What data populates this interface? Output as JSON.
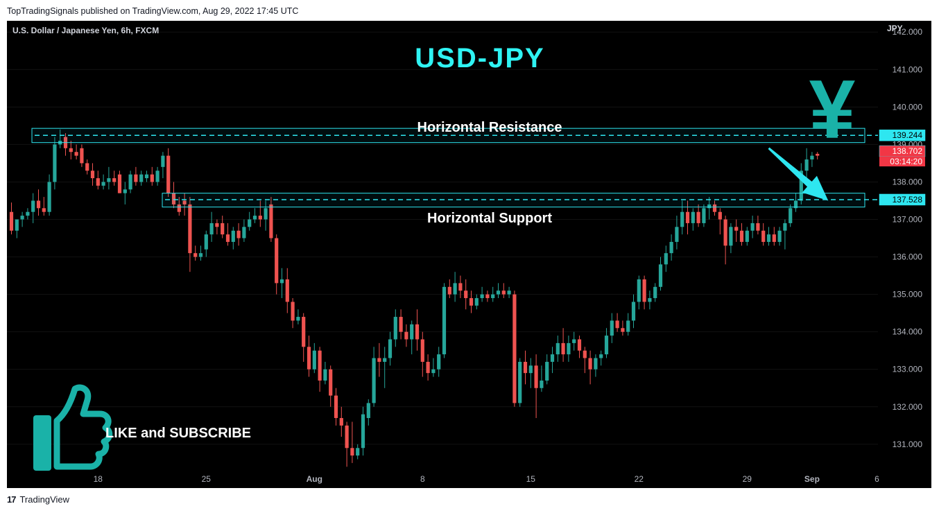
{
  "header": {
    "published_text": "TopTradingSignals published on TradingView.com, Aug 29, 2022 17:45 UTC"
  },
  "footer": {
    "logo_glyph": "17",
    "brand": "TradingView"
  },
  "chart_data": {
    "type": "candlestick",
    "symbol_line": "U.S. Dollar / Japanese Yen, 6h, FXCM",
    "title": "USD-JPY",
    "currency_label": "JPY",
    "currency_glyph": "¥",
    "y_ticks": [
      "142.000",
      "141.000",
      "140.000",
      "139.000",
      "138.000",
      "137.000",
      "136.000",
      "135.000",
      "134.000",
      "133.000",
      "132.000",
      "131.000"
    ],
    "y_tick_values": [
      142,
      141,
      140,
      139,
      138,
      137,
      136,
      135,
      134,
      133,
      132,
      131
    ],
    "ylim": [
      130.35,
      142.3
    ],
    "x_ticks": [
      "18",
      "25",
      "Aug",
      "8",
      "15",
      "22",
      "29",
      "Sep",
      "6"
    ],
    "x_tick_index": [
      16,
      36,
      56,
      76,
      96,
      116,
      136,
      148,
      160
    ],
    "resistance": {
      "label": "Horizontal Resistance",
      "value": 139.244,
      "value_text": "139.244",
      "zone": [
        139.05,
        139.43
      ]
    },
    "support": {
      "label": "Horizontal Support",
      "value": 137.528,
      "value_text": "137.528",
      "zone": [
        137.33,
        137.7
      ]
    },
    "last_price": {
      "value": 138.702,
      "value_text": "138.702",
      "countdown": "03:14:20"
    },
    "projection_arrow": {
      "from_index": 140,
      "from_value": 138.9,
      "to_index": 151,
      "to_value": 137.5
    },
    "promo_text": "LIKE and SUBSCRIBE",
    "candles": [
      [
        137.2,
        137.45,
        136.6,
        136.7
      ],
      [
        136.7,
        136.9,
        136.5,
        137.0
      ],
      [
        137.0,
        137.2,
        136.8,
        137.1
      ],
      [
        137.1,
        137.3,
        137.0,
        137.2
      ],
      [
        137.2,
        137.7,
        136.9,
        137.5
      ],
      [
        137.5,
        137.8,
        137.1,
        137.3
      ],
      [
        137.3,
        137.6,
        137.1,
        137.2
      ],
      [
        137.2,
        138.2,
        137.1,
        138.0
      ],
      [
        138.0,
        139.2,
        137.8,
        139.0
      ],
      [
        139.0,
        139.4,
        138.9,
        139.1
      ],
      [
        139.2,
        139.3,
        138.7,
        138.9
      ],
      [
        138.9,
        139.1,
        138.6,
        138.8
      ],
      [
        138.8,
        139.0,
        138.6,
        138.7
      ],
      [
        138.9,
        139.0,
        138.4,
        138.5
      ],
      [
        138.5,
        138.6,
        138.2,
        138.3
      ],
      [
        138.3,
        138.5,
        137.9,
        138.1
      ],
      [
        138.1,
        138.3,
        137.8,
        137.9
      ],
      [
        137.9,
        138.2,
        137.8,
        138.0
      ],
      [
        138.0,
        138.4,
        137.8,
        138.1
      ],
      [
        138.1,
        138.3,
        137.9,
        138.0
      ],
      [
        138.2,
        138.3,
        137.7,
        137.7
      ],
      [
        137.7,
        138.0,
        137.4,
        137.8
      ],
      [
        137.8,
        138.3,
        137.7,
        138.2
      ],
      [
        138.2,
        138.4,
        137.9,
        138.0
      ],
      [
        138.0,
        138.3,
        137.9,
        138.2
      ],
      [
        138.1,
        138.3,
        138.0,
        138.2
      ],
      [
        138.2,
        138.4,
        137.9,
        138.0
      ],
      [
        138.0,
        138.4,
        137.9,
        138.3
      ],
      [
        138.4,
        138.8,
        138.1,
        138.7
      ],
      [
        138.7,
        138.9,
        137.6,
        137.7
      ],
      [
        137.7,
        138.0,
        137.3,
        137.4
      ],
      [
        137.4,
        137.6,
        137.1,
        137.2
      ],
      [
        137.5,
        137.7,
        137.1,
        137.4
      ],
      [
        137.4,
        137.6,
        135.6,
        136.1
      ],
      [
        136.1,
        136.3,
        135.9,
        136.0
      ],
      [
        136.0,
        136.3,
        135.9,
        136.1
      ],
      [
        136.2,
        136.7,
        136.0,
        136.6
      ],
      [
        136.6,
        137.2,
        136.4,
        136.9
      ],
      [
        136.9,
        137.0,
        136.6,
        136.8
      ],
      [
        136.9,
        137.1,
        136.5,
        136.6
      ],
      [
        136.6,
        136.9,
        136.3,
        136.4
      ],
      [
        136.4,
        136.8,
        136.2,
        136.7
      ],
      [
        136.7,
        136.9,
        136.3,
        136.5
      ],
      [
        136.5,
        137.0,
        136.4,
        136.8
      ],
      [
        136.8,
        137.2,
        136.7,
        137.0
      ],
      [
        137.0,
        137.3,
        136.9,
        137.1
      ],
      [
        137.1,
        137.5,
        136.8,
        137.0
      ],
      [
        137.0,
        137.5,
        136.7,
        137.3
      ],
      [
        137.4,
        137.6,
        136.4,
        136.5
      ],
      [
        136.5,
        136.6,
        135.0,
        135.3
      ],
      [
        135.3,
        135.7,
        134.9,
        135.4
      ],
      [
        135.4,
        135.7,
        134.5,
        134.8
      ],
      [
        134.8,
        134.9,
        134.1,
        134.3
      ],
      [
        134.3,
        134.6,
        134.2,
        134.4
      ],
      [
        134.4,
        134.5,
        133.2,
        133.6
      ],
      [
        133.6,
        133.9,
        132.8,
        133.0
      ],
      [
        133.0,
        133.7,
        132.9,
        133.5
      ],
      [
        133.5,
        133.6,
        132.4,
        132.7
      ],
      [
        132.7,
        133.2,
        132.6,
        133.0
      ],
      [
        133.0,
        133.1,
        132.0,
        132.3
      ],
      [
        132.3,
        132.5,
        131.5,
        131.7
      ],
      [
        131.7,
        132.0,
        131.2,
        131.5
      ],
      [
        131.5,
        131.6,
        130.4,
        130.9
      ],
      [
        130.9,
        131.6,
        130.5,
        130.7
      ],
      [
        130.7,
        131.0,
        130.6,
        130.9
      ],
      [
        130.9,
        132.0,
        130.7,
        131.8
      ],
      [
        131.7,
        132.2,
        131.5,
        132.1
      ],
      [
        132.1,
        133.6,
        132.0,
        133.3
      ],
      [
        133.3,
        133.7,
        132.8,
        133.2
      ],
      [
        133.2,
        133.6,
        132.5,
        133.3
      ],
      [
        133.3,
        134.0,
        133.1,
        133.8
      ],
      [
        133.8,
        134.6,
        133.6,
        134.4
      ],
      [
        134.4,
        134.6,
        133.8,
        134.0
      ],
      [
        134.0,
        134.2,
        133.6,
        133.8
      ],
      [
        133.8,
        134.3,
        133.4,
        134.2
      ],
      [
        134.2,
        134.6,
        133.5,
        133.8
      ],
      [
        133.8,
        134.0,
        132.8,
        133.2
      ],
      [
        133.2,
        133.4,
        132.7,
        132.9
      ],
      [
        132.9,
        133.3,
        132.8,
        133.0
      ],
      [
        133.0,
        133.6,
        132.8,
        133.4
      ],
      [
        133.4,
        135.3,
        133.3,
        135.2
      ],
      [
        135.2,
        135.4,
        134.9,
        135.0
      ],
      [
        135.0,
        135.6,
        134.8,
        135.3
      ],
      [
        135.3,
        135.5,
        134.9,
        135.1
      ],
      [
        135.1,
        135.4,
        134.6,
        134.9
      ],
      [
        134.9,
        135.1,
        134.5,
        134.7
      ],
      [
        134.7,
        135.0,
        134.6,
        134.9
      ],
      [
        134.9,
        135.2,
        134.8,
        135.0
      ],
      [
        135.0,
        135.1,
        134.8,
        134.9
      ],
      [
        134.9,
        135.2,
        134.8,
        135.0
      ],
      [
        135.0,
        135.3,
        134.9,
        135.1
      ],
      [
        135.1,
        135.3,
        134.9,
        135.0
      ],
      [
        135.0,
        135.2,
        134.9,
        135.1
      ],
      [
        135.0,
        135.1,
        132.0,
        132.1
      ],
      [
        132.1,
        133.3,
        132.0,
        133.2
      ],
      [
        133.2,
        133.5,
        132.6,
        132.9
      ],
      [
        132.9,
        133.3,
        132.5,
        133.1
      ],
      [
        133.1,
        133.4,
        131.7,
        132.5
      ],
      [
        132.5,
        133.1,
        132.4,
        132.7
      ],
      [
        132.7,
        133.4,
        132.6,
        133.2
      ],
      [
        133.2,
        133.6,
        132.9,
        133.4
      ],
      [
        133.4,
        133.9,
        133.2,
        133.7
      ],
      [
        133.7,
        134.1,
        133.2,
        133.4
      ],
      [
        133.4,
        133.9,
        133.2,
        133.7
      ],
      [
        133.7,
        134.0,
        133.5,
        133.8
      ],
      [
        133.8,
        133.9,
        133.3,
        133.5
      ],
      [
        133.5,
        133.6,
        132.9,
        133.3
      ],
      [
        133.3,
        133.5,
        132.6,
        133.0
      ],
      [
        133.0,
        133.4,
        132.8,
        133.3
      ],
      [
        133.3,
        133.5,
        133.1,
        133.4
      ],
      [
        133.4,
        134.1,
        133.3,
        133.9
      ],
      [
        133.9,
        134.5,
        133.7,
        134.3
      ],
      [
        134.3,
        134.5,
        134.0,
        134.1
      ],
      [
        134.1,
        134.3,
        133.9,
        134.0
      ],
      [
        134.0,
        134.5,
        133.9,
        134.3
      ],
      [
        134.3,
        135.0,
        134.1,
        134.8
      ],
      [
        134.8,
        135.5,
        134.6,
        135.4
      ],
      [
        135.4,
        135.5,
        134.6,
        134.8
      ],
      [
        134.8,
        135.1,
        134.6,
        134.9
      ],
      [
        134.9,
        135.3,
        134.8,
        135.2
      ],
      [
        135.2,
        136.0,
        135.1,
        135.8
      ],
      [
        135.8,
        136.3,
        135.6,
        136.1
      ],
      [
        136.1,
        136.6,
        135.9,
        136.4
      ],
      [
        136.4,
        137.1,
        136.2,
        136.8
      ],
      [
        136.8,
        137.5,
        136.6,
        137.2
      ],
      [
        137.2,
        137.5,
        136.6,
        136.9
      ],
      [
        136.9,
        137.3,
        136.7,
        137.2
      ],
      [
        137.2,
        137.4,
        136.8,
        136.9
      ],
      [
        136.9,
        137.4,
        136.8,
        137.3
      ],
      [
        137.3,
        137.6,
        137.0,
        137.4
      ],
      [
        137.4,
        137.5,
        137.1,
        137.2
      ],
      [
        137.2,
        137.3,
        136.6,
        137.0
      ],
      [
        137.0,
        137.1,
        135.8,
        136.3
      ],
      [
        136.3,
        136.9,
        136.1,
        136.8
      ],
      [
        136.8,
        137.0,
        136.4,
        136.7
      ],
      [
        136.7,
        136.9,
        136.3,
        136.4
      ],
      [
        136.4,
        136.8,
        136.3,
        136.7
      ],
      [
        136.7,
        137.1,
        136.5,
        136.9
      ],
      [
        136.9,
        137.1,
        136.6,
        136.7
      ],
      [
        136.7,
        136.9,
        136.3,
        136.4
      ],
      [
        136.4,
        136.8,
        136.3,
        136.6
      ],
      [
        136.6,
        136.8,
        136.3,
        136.4
      ],
      [
        136.4,
        136.8,
        136.3,
        136.7
      ],
      [
        136.7,
        137.0,
        136.2,
        136.9
      ],
      [
        136.9,
        137.4,
        136.8,
        137.3
      ],
      [
        137.3,
        137.7,
        137.2,
        137.5
      ],
      [
        137.5,
        138.5,
        137.4,
        138.3
      ],
      [
        138.3,
        138.9,
        138.1,
        138.6
      ],
      [
        138.6,
        138.8,
        138.4,
        138.7
      ],
      [
        138.75,
        138.8,
        138.6,
        138.7
      ]
    ]
  }
}
